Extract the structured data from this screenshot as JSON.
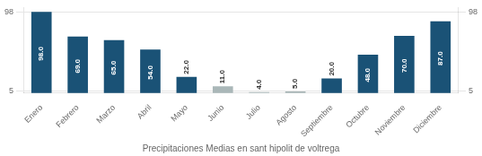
{
  "chart_data": {
    "type": "bar",
    "xlabel": "Precipitaciones Medias en sant hipolit de voltrega",
    "categories": [
      "Enero",
      "Febrero",
      "Marzo",
      "Abril",
      "Mayo",
      "Junio",
      "Julio",
      "Agosto",
      "Septiembre",
      "Octubre",
      "Noviembre",
      "Diciembre"
    ],
    "values": [
      98.0,
      69.0,
      65.0,
      54.0,
      22.0,
      11.0,
      4.0,
      5.0,
      20.0,
      48.0,
      70.0,
      87.0
    ],
    "value_labels": [
      "98.0",
      "69.0",
      "65.0",
      "54.0",
      "22.0",
      "11.0",
      "4.0",
      "5.0",
      "20.0",
      "48.0",
      "70.0",
      "87.0"
    ],
    "colors": [
      "#1a5276",
      "#1a5276",
      "#1a5276",
      "#1a5276",
      "#1a5276",
      "#aab7b8",
      "#aab7b8",
      "#aab7b8",
      "#1a5276",
      "#1a5276",
      "#1a5276",
      "#1a5276"
    ],
    "ylim": [
      3.0,
      103.0
    ],
    "yticks": [
      5,
      98
    ],
    "y2lim": [
      3.0,
      103.0
    ],
    "y2ticks": [
      5,
      98
    ],
    "grid": true,
    "data_labels": true
  }
}
